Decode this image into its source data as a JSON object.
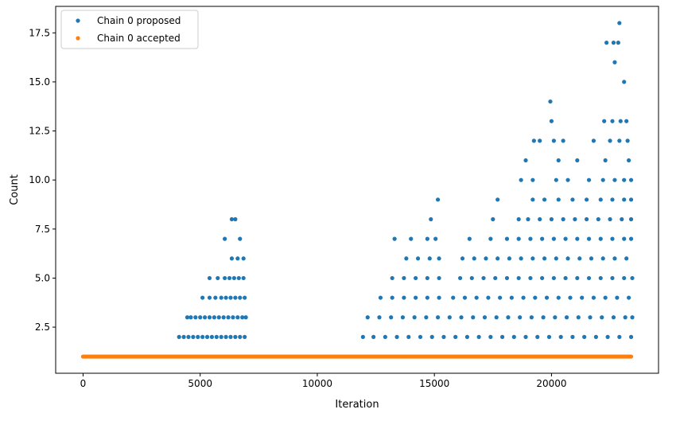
{
  "chart_data": {
    "type": "scatter",
    "title": "",
    "xlabel": "Iteration",
    "ylabel": "Count",
    "xlim": [
      -1170,
      24570
    ],
    "ylim": [
      0.15,
      18.85
    ],
    "xticks": [
      0,
      5000,
      10000,
      15000,
      20000
    ],
    "xtick_labels": [
      "0",
      "5000",
      "10000",
      "15000",
      "20000"
    ],
    "yticks": [
      2.5,
      5.0,
      7.5,
      10.0,
      12.5,
      15.0,
      17.5
    ],
    "ytick_labels": [
      "2.5",
      "5.0",
      "7.5",
      "10.0",
      "12.5",
      "15.0",
      "17.5"
    ],
    "grid": false,
    "legend": {
      "position": "top-left"
    },
    "series": [
      {
        "name": "Chain 0 proposed",
        "color": "#1f77b4",
        "points": [
          {
            "x": 4100,
            "y": 2
          },
          {
            "x": 4300,
            "y": 2
          },
          {
            "x": 4500,
            "y": 2
          },
          {
            "x": 4700,
            "y": 2
          },
          {
            "x": 4900,
            "y": 2
          },
          {
            "x": 5100,
            "y": 2
          },
          {
            "x": 5300,
            "y": 2
          },
          {
            "x": 5500,
            "y": 2
          },
          {
            "x": 5700,
            "y": 2
          },
          {
            "x": 5900,
            "y": 2
          },
          {
            "x": 6100,
            "y": 2
          },
          {
            "x": 6300,
            "y": 2
          },
          {
            "x": 6500,
            "y": 2
          },
          {
            "x": 6700,
            "y": 2
          },
          {
            "x": 6900,
            "y": 2
          },
          {
            "x": 4450,
            "y": 3
          },
          {
            "x": 4600,
            "y": 3
          },
          {
            "x": 4800,
            "y": 3
          },
          {
            "x": 5000,
            "y": 3
          },
          {
            "x": 5200,
            "y": 3
          },
          {
            "x": 5400,
            "y": 3
          },
          {
            "x": 5600,
            "y": 3
          },
          {
            "x": 5800,
            "y": 3
          },
          {
            "x": 6000,
            "y": 3
          },
          {
            "x": 6200,
            "y": 3
          },
          {
            "x": 6400,
            "y": 3
          },
          {
            "x": 6600,
            "y": 3
          },
          {
            "x": 6800,
            "y": 3
          },
          {
            "x": 6950,
            "y": 3
          },
          {
            "x": 5100,
            "y": 4
          },
          {
            "x": 5400,
            "y": 4
          },
          {
            "x": 5650,
            "y": 4
          },
          {
            "x": 5900,
            "y": 4
          },
          {
            "x": 6100,
            "y": 4
          },
          {
            "x": 6300,
            "y": 4
          },
          {
            "x": 6500,
            "y": 4
          },
          {
            "x": 6700,
            "y": 4
          },
          {
            "x": 6900,
            "y": 4
          },
          {
            "x": 5400,
            "y": 5
          },
          {
            "x": 5750,
            "y": 5
          },
          {
            "x": 6050,
            "y": 5
          },
          {
            "x": 6250,
            "y": 5
          },
          {
            "x": 6450,
            "y": 5
          },
          {
            "x": 6650,
            "y": 5
          },
          {
            "x": 6850,
            "y": 5
          },
          {
            "x": 6350,
            "y": 6
          },
          {
            "x": 6600,
            "y": 6
          },
          {
            "x": 6850,
            "y": 6
          },
          {
            "x": 6050,
            "y": 7
          },
          {
            "x": 6700,
            "y": 7
          },
          {
            "x": 6350,
            "y": 8
          },
          {
            "x": 6500,
            "y": 8
          },
          {
            "x": 11950,
            "y": 2
          },
          {
            "x": 12400,
            "y": 2
          },
          {
            "x": 12900,
            "y": 2
          },
          {
            "x": 13400,
            "y": 2
          },
          {
            "x": 13900,
            "y": 2
          },
          {
            "x": 14400,
            "y": 2
          },
          {
            "x": 14900,
            "y": 2
          },
          {
            "x": 15400,
            "y": 2
          },
          {
            "x": 15900,
            "y": 2
          },
          {
            "x": 16400,
            "y": 2
          },
          {
            "x": 16900,
            "y": 2
          },
          {
            "x": 17400,
            "y": 2
          },
          {
            "x": 17900,
            "y": 2
          },
          {
            "x": 18400,
            "y": 2
          },
          {
            "x": 18900,
            "y": 2
          },
          {
            "x": 19400,
            "y": 2
          },
          {
            "x": 19900,
            "y": 2
          },
          {
            "x": 20400,
            "y": 2
          },
          {
            "x": 20900,
            "y": 2
          },
          {
            "x": 21400,
            "y": 2
          },
          {
            "x": 21900,
            "y": 2
          },
          {
            "x": 22400,
            "y": 2
          },
          {
            "x": 22900,
            "y": 2
          },
          {
            "x": 23400,
            "y": 2
          },
          {
            "x": 12150,
            "y": 3
          },
          {
            "x": 12650,
            "y": 3
          },
          {
            "x": 13150,
            "y": 3
          },
          {
            "x": 13650,
            "y": 3
          },
          {
            "x": 14150,
            "y": 3
          },
          {
            "x": 14650,
            "y": 3
          },
          {
            "x": 15150,
            "y": 3
          },
          {
            "x": 15650,
            "y": 3
          },
          {
            "x": 16150,
            "y": 3
          },
          {
            "x": 16650,
            "y": 3
          },
          {
            "x": 17150,
            "y": 3
          },
          {
            "x": 17650,
            "y": 3
          },
          {
            "x": 18150,
            "y": 3
          },
          {
            "x": 18650,
            "y": 3
          },
          {
            "x": 19150,
            "y": 3
          },
          {
            "x": 19650,
            "y": 3
          },
          {
            "x": 20150,
            "y": 3
          },
          {
            "x": 20650,
            "y": 3
          },
          {
            "x": 21150,
            "y": 3
          },
          {
            "x": 21650,
            "y": 3
          },
          {
            "x": 22150,
            "y": 3
          },
          {
            "x": 22650,
            "y": 3
          },
          {
            "x": 23150,
            "y": 3
          },
          {
            "x": 23450,
            "y": 3
          },
          {
            "x": 12700,
            "y": 4
          },
          {
            "x": 13200,
            "y": 4
          },
          {
            "x": 13700,
            "y": 4
          },
          {
            "x": 14200,
            "y": 4
          },
          {
            "x": 14700,
            "y": 4
          },
          {
            "x": 15200,
            "y": 4
          },
          {
            "x": 15800,
            "y": 4
          },
          {
            "x": 16300,
            "y": 4
          },
          {
            "x": 16800,
            "y": 4
          },
          {
            "x": 17300,
            "y": 4
          },
          {
            "x": 17800,
            "y": 4
          },
          {
            "x": 18300,
            "y": 4
          },
          {
            "x": 18800,
            "y": 4
          },
          {
            "x": 19300,
            "y": 4
          },
          {
            "x": 19800,
            "y": 4
          },
          {
            "x": 20300,
            "y": 4
          },
          {
            "x": 20800,
            "y": 4
          },
          {
            "x": 21300,
            "y": 4
          },
          {
            "x": 21800,
            "y": 4
          },
          {
            "x": 22300,
            "y": 4
          },
          {
            "x": 22800,
            "y": 4
          },
          {
            "x": 23300,
            "y": 4
          },
          {
            "x": 13200,
            "y": 5
          },
          {
            "x": 13700,
            "y": 5
          },
          {
            "x": 14200,
            "y": 5
          },
          {
            "x": 14700,
            "y": 5
          },
          {
            "x": 15200,
            "y": 5
          },
          {
            "x": 16100,
            "y": 5
          },
          {
            "x": 16600,
            "y": 5
          },
          {
            "x": 17100,
            "y": 5
          },
          {
            "x": 17600,
            "y": 5
          },
          {
            "x": 18100,
            "y": 5
          },
          {
            "x": 18600,
            "y": 5
          },
          {
            "x": 19100,
            "y": 5
          },
          {
            "x": 19600,
            "y": 5
          },
          {
            "x": 20100,
            "y": 5
          },
          {
            "x": 20600,
            "y": 5
          },
          {
            "x": 21100,
            "y": 5
          },
          {
            "x": 21600,
            "y": 5
          },
          {
            "x": 22100,
            "y": 5
          },
          {
            "x": 22600,
            "y": 5
          },
          {
            "x": 23100,
            "y": 5
          },
          {
            "x": 23450,
            "y": 5
          },
          {
            "x": 13800,
            "y": 6
          },
          {
            "x": 14300,
            "y": 6
          },
          {
            "x": 14800,
            "y": 6
          },
          {
            "x": 15200,
            "y": 6
          },
          {
            "x": 16200,
            "y": 6
          },
          {
            "x": 16700,
            "y": 6
          },
          {
            "x": 17200,
            "y": 6
          },
          {
            "x": 17700,
            "y": 6
          },
          {
            "x": 18200,
            "y": 6
          },
          {
            "x": 18700,
            "y": 6
          },
          {
            "x": 19200,
            "y": 6
          },
          {
            "x": 19700,
            "y": 6
          },
          {
            "x": 20200,
            "y": 6
          },
          {
            "x": 20700,
            "y": 6
          },
          {
            "x": 21200,
            "y": 6
          },
          {
            "x": 21700,
            "y": 6
          },
          {
            "x": 22200,
            "y": 6
          },
          {
            "x": 22700,
            "y": 6
          },
          {
            "x": 23200,
            "y": 6
          },
          {
            "x": 13300,
            "y": 7
          },
          {
            "x": 14000,
            "y": 7
          },
          {
            "x": 14700,
            "y": 7
          },
          {
            "x": 15050,
            "y": 7
          },
          {
            "x": 16500,
            "y": 7
          },
          {
            "x": 17400,
            "y": 7
          },
          {
            "x": 18100,
            "y": 7
          },
          {
            "x": 18600,
            "y": 7
          },
          {
            "x": 19100,
            "y": 7
          },
          {
            "x": 19600,
            "y": 7
          },
          {
            "x": 20100,
            "y": 7
          },
          {
            "x": 20600,
            "y": 7
          },
          {
            "x": 21100,
            "y": 7
          },
          {
            "x": 21600,
            "y": 7
          },
          {
            "x": 22100,
            "y": 7
          },
          {
            "x": 22600,
            "y": 7
          },
          {
            "x": 23100,
            "y": 7
          },
          {
            "x": 23400,
            "y": 7
          },
          {
            "x": 14850,
            "y": 8
          },
          {
            "x": 17500,
            "y": 8
          },
          {
            "x": 18600,
            "y": 8
          },
          {
            "x": 19000,
            "y": 8
          },
          {
            "x": 19500,
            "y": 8
          },
          {
            "x": 20000,
            "y": 8
          },
          {
            "x": 20500,
            "y": 8
          },
          {
            "x": 21000,
            "y": 8
          },
          {
            "x": 21500,
            "y": 8
          },
          {
            "x": 22000,
            "y": 8
          },
          {
            "x": 22500,
            "y": 8
          },
          {
            "x": 23000,
            "y": 8
          },
          {
            "x": 23400,
            "y": 8
          },
          {
            "x": 15150,
            "y": 9
          },
          {
            "x": 17700,
            "y": 9
          },
          {
            "x": 19200,
            "y": 9
          },
          {
            "x": 19700,
            "y": 9
          },
          {
            "x": 20300,
            "y": 9
          },
          {
            "x": 20900,
            "y": 9
          },
          {
            "x": 21500,
            "y": 9
          },
          {
            "x": 22100,
            "y": 9
          },
          {
            "x": 22600,
            "y": 9
          },
          {
            "x": 23100,
            "y": 9
          },
          {
            "x": 23400,
            "y": 9
          },
          {
            "x": 18700,
            "y": 10
          },
          {
            "x": 19200,
            "y": 10
          },
          {
            "x": 20200,
            "y": 10
          },
          {
            "x": 20700,
            "y": 10
          },
          {
            "x": 21600,
            "y": 10
          },
          {
            "x": 22200,
            "y": 10
          },
          {
            "x": 22700,
            "y": 10
          },
          {
            "x": 23100,
            "y": 10
          },
          {
            "x": 23400,
            "y": 10
          },
          {
            "x": 18900,
            "y": 11
          },
          {
            "x": 20300,
            "y": 11
          },
          {
            "x": 21100,
            "y": 11
          },
          {
            "x": 22300,
            "y": 11
          },
          {
            "x": 23300,
            "y": 11
          },
          {
            "x": 19250,
            "y": 12
          },
          {
            "x": 19500,
            "y": 12
          },
          {
            "x": 20100,
            "y": 12
          },
          {
            "x": 20500,
            "y": 12
          },
          {
            "x": 21800,
            "y": 12
          },
          {
            "x": 22500,
            "y": 12
          },
          {
            "x": 22900,
            "y": 12
          },
          {
            "x": 23250,
            "y": 12
          },
          {
            "x": 20000,
            "y": 13
          },
          {
            "x": 22250,
            "y": 13
          },
          {
            "x": 22600,
            "y": 13
          },
          {
            "x": 22950,
            "y": 13
          },
          {
            "x": 23200,
            "y": 13
          },
          {
            "x": 19950,
            "y": 14
          },
          {
            "x": 23100,
            "y": 15
          },
          {
            "x": 22700,
            "y": 16
          },
          {
            "x": 22350,
            "y": 17
          },
          {
            "x": 22650,
            "y": 17
          },
          {
            "x": 22850,
            "y": 17
          },
          {
            "x": 22900,
            "y": 18
          }
        ]
      },
      {
        "name": "Chain 0 accepted",
        "color": "#ff7f0e",
        "x_range": [
          0,
          23400
        ],
        "y": 1
      }
    ]
  }
}
